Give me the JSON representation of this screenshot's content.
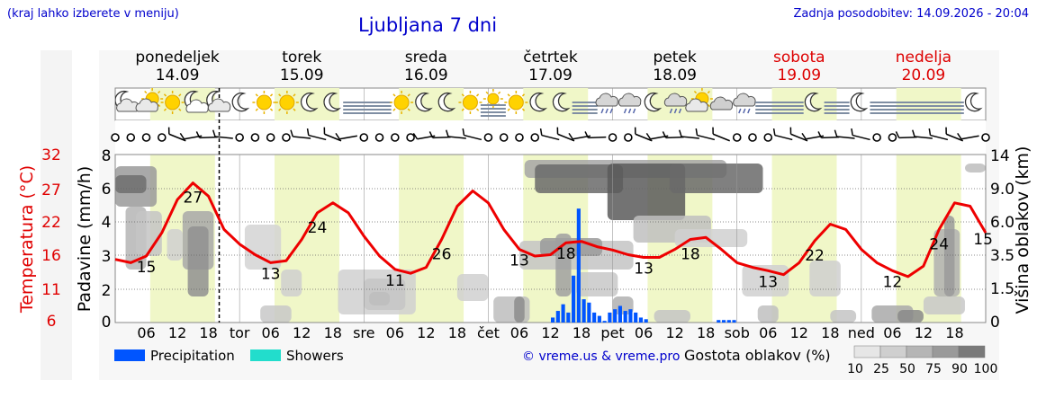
{
  "header": {
    "left_note": "(kraj lahko izberete v meniju)",
    "title": "Ljubljana 7 dni",
    "updated": "Zadnja posodobitev: 14.09.2026 - 20:04"
  },
  "days": [
    {
      "name": "ponedeljek",
      "date": "14.09",
      "weekend": false,
      "abbr": ""
    },
    {
      "name": "torek",
      "date": "15.09",
      "weekend": false,
      "abbr": "tor"
    },
    {
      "name": "sreda",
      "date": "16.09",
      "weekend": false,
      "abbr": "sre"
    },
    {
      "name": "četrtek",
      "date": "17.09",
      "weekend": false,
      "abbr": "čet"
    },
    {
      "name": "petek",
      "date": "18.09",
      "weekend": false,
      "abbr": "pet"
    },
    {
      "name": "sobota",
      "date": "19.09",
      "weekend": true,
      "abbr": "sob"
    },
    {
      "name": "nedelja",
      "date": "20.09",
      "weekend": true,
      "abbr": "ned"
    }
  ],
  "hour_ticks": [
    "06",
    "12",
    "18"
  ],
  "weather_icons": [
    "cloudy-night",
    "partly-cloudy-day",
    "sunny",
    "partly-cloudy-night",
    "cloudy-night",
    "moon",
    "sunny",
    "sunny",
    "moon",
    "moon",
    "fog",
    "fog",
    "sunny",
    "moon",
    "moon",
    "sunny",
    "fog-sun",
    "sunny",
    "moon",
    "moon",
    "fog",
    "rain-shower",
    "drizzle",
    "moon",
    "drizzle",
    "partly-cloudy-day",
    "cloudy",
    "drizzle",
    "fog",
    "fog",
    "moon",
    "fog",
    "moon",
    "fog",
    "fog",
    "fog",
    "fog",
    "moon"
  ],
  "legend": {
    "precipitation": "Precipitation",
    "showers": "Showers",
    "credit": "© vreme.us & vreme.pro",
    "cloud_title": "Gostota oblakov (%)",
    "cloud_levels": [
      "10",
      "25",
      "50",
      "75",
      "90",
      "100"
    ],
    "colors": {
      "precipitation": "#0055ff",
      "showers": "#22ddcc",
      "temperature": "#ee0000",
      "weekday": "#000000",
      "weekend": "#dd0000"
    }
  },
  "chart_data": {
    "type": "line",
    "title": "Ljubljana 7 dni",
    "x_unit": "hours from 14.09 00:00",
    "xlim": [
      0,
      168
    ],
    "left_axes": [
      {
        "label": "Temperatura (°C)",
        "ticks": [
          "6",
          "11",
          "16",
          "22",
          "27",
          "32"
        ]
      },
      {
        "label": "Padavine (mm/h)",
        "ticks": [
          "0",
          "2",
          "2",
          "3",
          "4",
          "6",
          "8"
        ]
      }
    ],
    "right_axis": {
      "label": "Višina oblakov (km)",
      "ticks": [
        "0",
        "1.5",
        "2.0",
        "3.5",
        "6.0",
        "9.0",
        "14"
      ]
    },
    "temperature": {
      "name": "Temperatura",
      "x": [
        0,
        3,
        6,
        9,
        12,
        15,
        18,
        21,
        24,
        27,
        30,
        33,
        36,
        39,
        42,
        45,
        48,
        51,
        54,
        57,
        60,
        63,
        66,
        69,
        72,
        75,
        78,
        81,
        84,
        87,
        90,
        93,
        96,
        99,
        102,
        105,
        108,
        111,
        114,
        117,
        120,
        123,
        126,
        129,
        132,
        135,
        138,
        141,
        144,
        147,
        150,
        153,
        156,
        159,
        162,
        165,
        168
      ],
      "y": [
        15.5,
        15.0,
        16.0,
        19.5,
        24.5,
        27.0,
        25.0,
        20.0,
        17.8,
        16.2,
        15.0,
        15.3,
        18.5,
        22.5,
        24.0,
        22.5,
        19.0,
        16.0,
        14.0,
        13.4,
        14.3,
        18.5,
        23.5,
        25.8,
        24.0,
        20.0,
        17.0,
        16.0,
        16.2,
        18.0,
        18.2,
        17.4,
        16.9,
        16.2,
        15.8,
        15.8,
        17.0,
        18.5,
        18.8,
        17.0,
        15.0,
        14.3,
        13.8,
        13.2,
        15.0,
        18.3,
        20.8,
        20.0,
        17.0,
        15.0,
        13.8,
        12.9,
        14.5,
        20.0,
        24.0,
        23.5,
        19.5
      ]
    },
    "daily_labels": [
      {
        "x": 6,
        "value": "15"
      },
      {
        "x": 15,
        "value": "27"
      },
      {
        "x": 30,
        "value": "13"
      },
      {
        "x": 39,
        "value": "24"
      },
      {
        "x": 54,
        "value": "11"
      },
      {
        "x": 63,
        "value": "26"
      },
      {
        "x": 78,
        "value": "13"
      },
      {
        "x": 87,
        "value": "18"
      },
      {
        "x": 102,
        "value": "13"
      },
      {
        "x": 111,
        "value": "18"
      },
      {
        "x": 126,
        "value": "13"
      },
      {
        "x": 135,
        "value": "22"
      },
      {
        "x": 150,
        "value": "12"
      },
      {
        "x": 159,
        "value": "24"
      },
      {
        "x": 167.5,
        "value": "15"
      }
    ],
    "precipitation": {
      "name": "Precipitation",
      "unit": "mm/h",
      "x": [
        84,
        85,
        86,
        87,
        88,
        89,
        90,
        91,
        92,
        93,
        94,
        95,
        96,
        97,
        98,
        99,
        100,
        101,
        102,
        116,
        117,
        118,
        119
      ],
      "y": [
        0.3,
        0.7,
        1.1,
        0.6,
        2.4,
        4.8,
        1.4,
        1.2,
        0.6,
        0.4,
        0.1,
        0.6,
        0.8,
        1.0,
        0.7,
        0.8,
        0.6,
        0.3,
        0.2,
        0.15,
        0.15,
        0.15,
        0.15
      ]
    },
    "showers": {
      "name": "Showers",
      "x": [],
      "y": []
    },
    "grid": true
  }
}
